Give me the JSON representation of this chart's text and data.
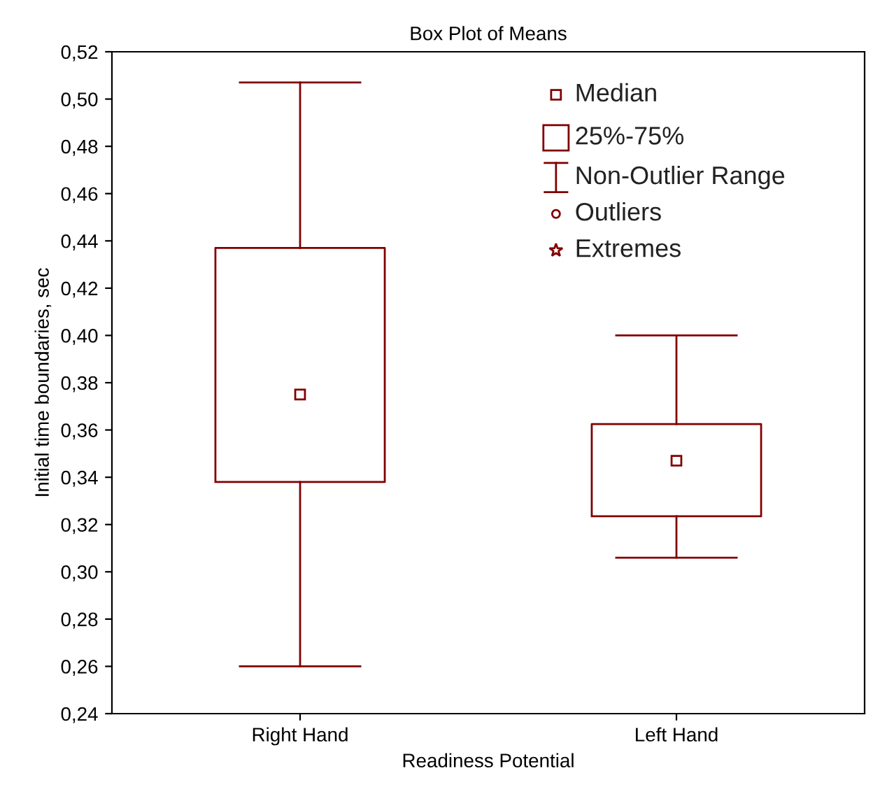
{
  "chart_data": {
    "type": "box",
    "title": "Box Plot of Means",
    "xlabel": "Readiness Potential",
    "ylabel": "Initial time boundaries, sec",
    "categories": [
      "Right Hand",
      "Left Hand"
    ],
    "color": "#800000",
    "boxes": [
      {
        "low": 0.26,
        "q1": 0.338,
        "median": 0.375,
        "q3": 0.437,
        "high": 0.507
      },
      {
        "low": 0.306,
        "q1": 0.3235,
        "median": 0.347,
        "q3": 0.3625,
        "high": 0.4
      }
    ],
    "ylim": [
      0.24,
      0.52
    ],
    "yticks": [
      {
        "value": 0.24,
        "label": "0,24"
      },
      {
        "value": 0.26,
        "label": "0,26"
      },
      {
        "value": 0.28,
        "label": "0,28"
      },
      {
        "value": 0.3,
        "label": "0,30"
      },
      {
        "value": 0.32,
        "label": "0,32"
      },
      {
        "value": 0.34,
        "label": "0,34"
      },
      {
        "value": 0.36,
        "label": "0,36"
      },
      {
        "value": 0.38,
        "label": "0,38"
      },
      {
        "value": 0.4,
        "label": "0,40"
      },
      {
        "value": 0.42,
        "label": "0,42"
      },
      {
        "value": 0.44,
        "label": "0,44"
      },
      {
        "value": 0.46,
        "label": "0,46"
      },
      {
        "value": 0.48,
        "label": "0,48"
      },
      {
        "value": 0.5,
        "label": "0,50"
      },
      {
        "value": 0.52,
        "label": "0,52"
      }
    ],
    "annotations": [
      "Median",
      "25%-75%",
      "Non-Outlier Range",
      "Outliers",
      "Extremes"
    ],
    "grid": false
  }
}
